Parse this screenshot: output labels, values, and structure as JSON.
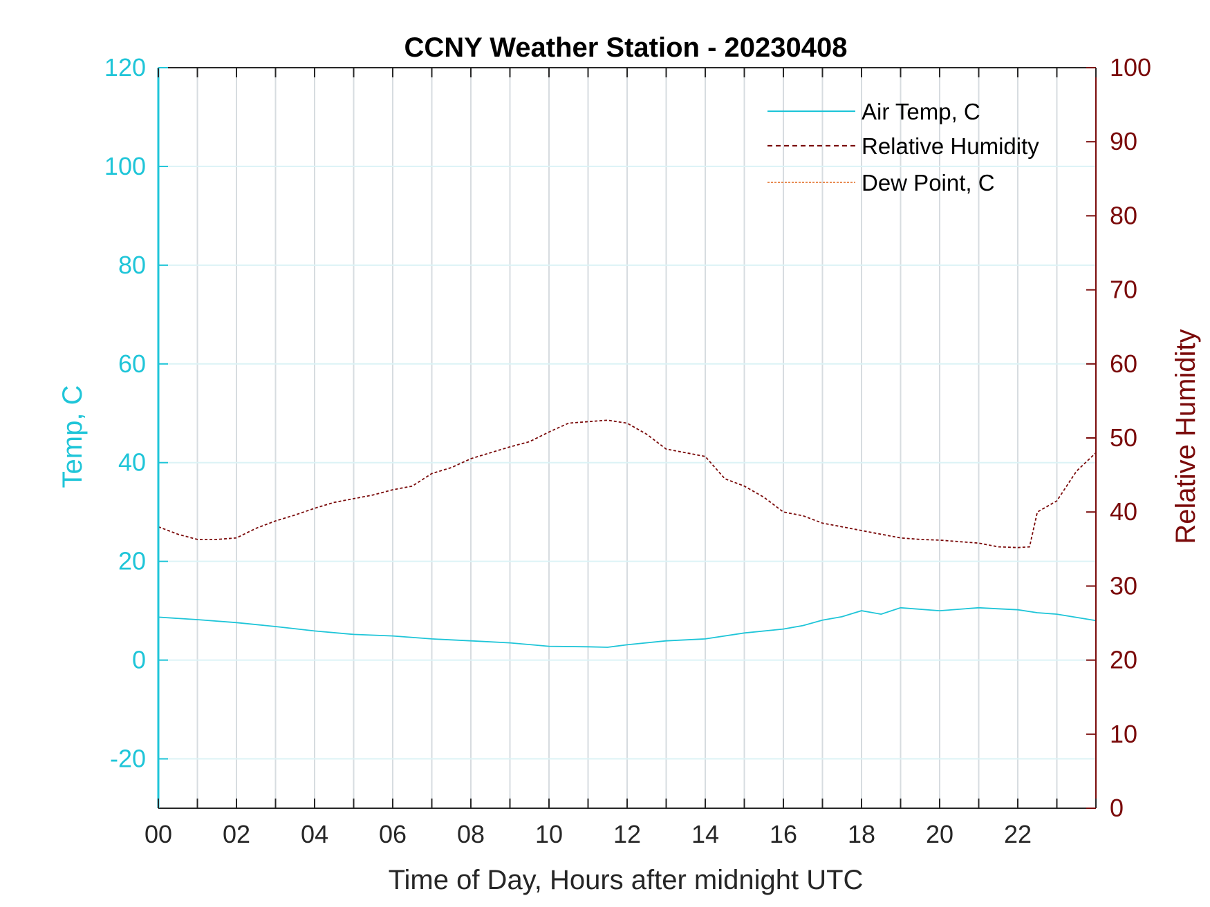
{
  "chart_data": {
    "type": "line",
    "title": "CCNY Weather Station - 20230408",
    "xlabel": "Time of Day, Hours after midnight UTC",
    "ylabel_left": "Temp, C",
    "ylabel_right": "Relative Humidity",
    "xlim": [
      0,
      24
    ],
    "ylim_left": [
      -30,
      120
    ],
    "ylim_right": [
      0,
      100
    ],
    "x_ticks": [
      "00",
      "02",
      "04",
      "06",
      "08",
      "10",
      "12",
      "14",
      "16",
      "18",
      "20",
      "22"
    ],
    "y_left_ticks": [
      "-20",
      "0",
      "20",
      "40",
      "60",
      "80",
      "100",
      "120"
    ],
    "y_right_ticks": [
      "0",
      "10",
      "20",
      "30",
      "40",
      "50",
      "60",
      "70",
      "80",
      "90",
      "100"
    ],
    "grid": true,
    "legend_position": "top-right",
    "colors": {
      "air_temp": "#1fc5d8",
      "humidity": "#7a0a0a",
      "dew_point": "#e0661a",
      "left_axis": "#1fc5d8",
      "right_axis": "#7a0a0a",
      "grid": "#d7dce0"
    },
    "series": [
      {
        "name": "Air Temp, C",
        "axis": "left",
        "style": "solid",
        "x": [
          0,
          1,
          2,
          3,
          4,
          5,
          6,
          7,
          8,
          9,
          10,
          11,
          11.5,
          12,
          13,
          14,
          15,
          16,
          16.5,
          17,
          17.5,
          18,
          18.5,
          19,
          20,
          21,
          21.5,
          22,
          22.5,
          23,
          24
        ],
        "y": [
          8.7,
          8.2,
          7.6,
          6.8,
          5.9,
          5.2,
          4.9,
          4.3,
          3.9,
          3.5,
          2.8,
          2.7,
          2.6,
          3.1,
          3.9,
          4.3,
          5.5,
          6.3,
          7.0,
          8.1,
          8.8,
          10.0,
          9.3,
          10.6,
          10.0,
          10.6,
          10.4,
          10.2,
          9.6,
          9.3,
          8.0
        ]
      },
      {
        "name": "Relative Humidity",
        "axis": "right",
        "style": "dashed",
        "x": [
          0,
          0.5,
          1,
          1.5,
          2,
          2.5,
          3,
          3.5,
          4,
          4.5,
          5,
          5.5,
          6,
          6.5,
          7,
          7.5,
          8,
          8.5,
          9,
          9.5,
          10,
          10.5,
          11,
          11.5,
          12,
          12.5,
          13,
          13.5,
          14,
          14.5,
          15,
          15.5,
          16,
          16.5,
          17,
          17.5,
          18,
          18.5,
          19,
          19.5,
          20,
          20.5,
          21,
          21.5,
          22,
          22.3,
          22.5,
          23,
          23.5,
          24
        ],
        "y": [
          38.0,
          37.0,
          36.3,
          36.3,
          36.5,
          37.8,
          38.8,
          39.6,
          40.5,
          41.3,
          41.8,
          42.3,
          43.0,
          43.5,
          45.2,
          46.0,
          47.2,
          48.0,
          48.8,
          49.5,
          50.8,
          52.0,
          52.2,
          52.4,
          52.0,
          50.5,
          48.5,
          48.0,
          47.5,
          44.5,
          43.5,
          42.0,
          40.0,
          39.5,
          38.5,
          38.0,
          37.5,
          37.0,
          36.5,
          36.3,
          36.2,
          36.0,
          35.8,
          35.3,
          35.2,
          35.3,
          40.0,
          41.5,
          45.5,
          48.0
        ]
      },
      {
        "name": "Dew Point, C",
        "axis": "left",
        "style": "dash-dot",
        "x": [],
        "y": []
      }
    ]
  }
}
